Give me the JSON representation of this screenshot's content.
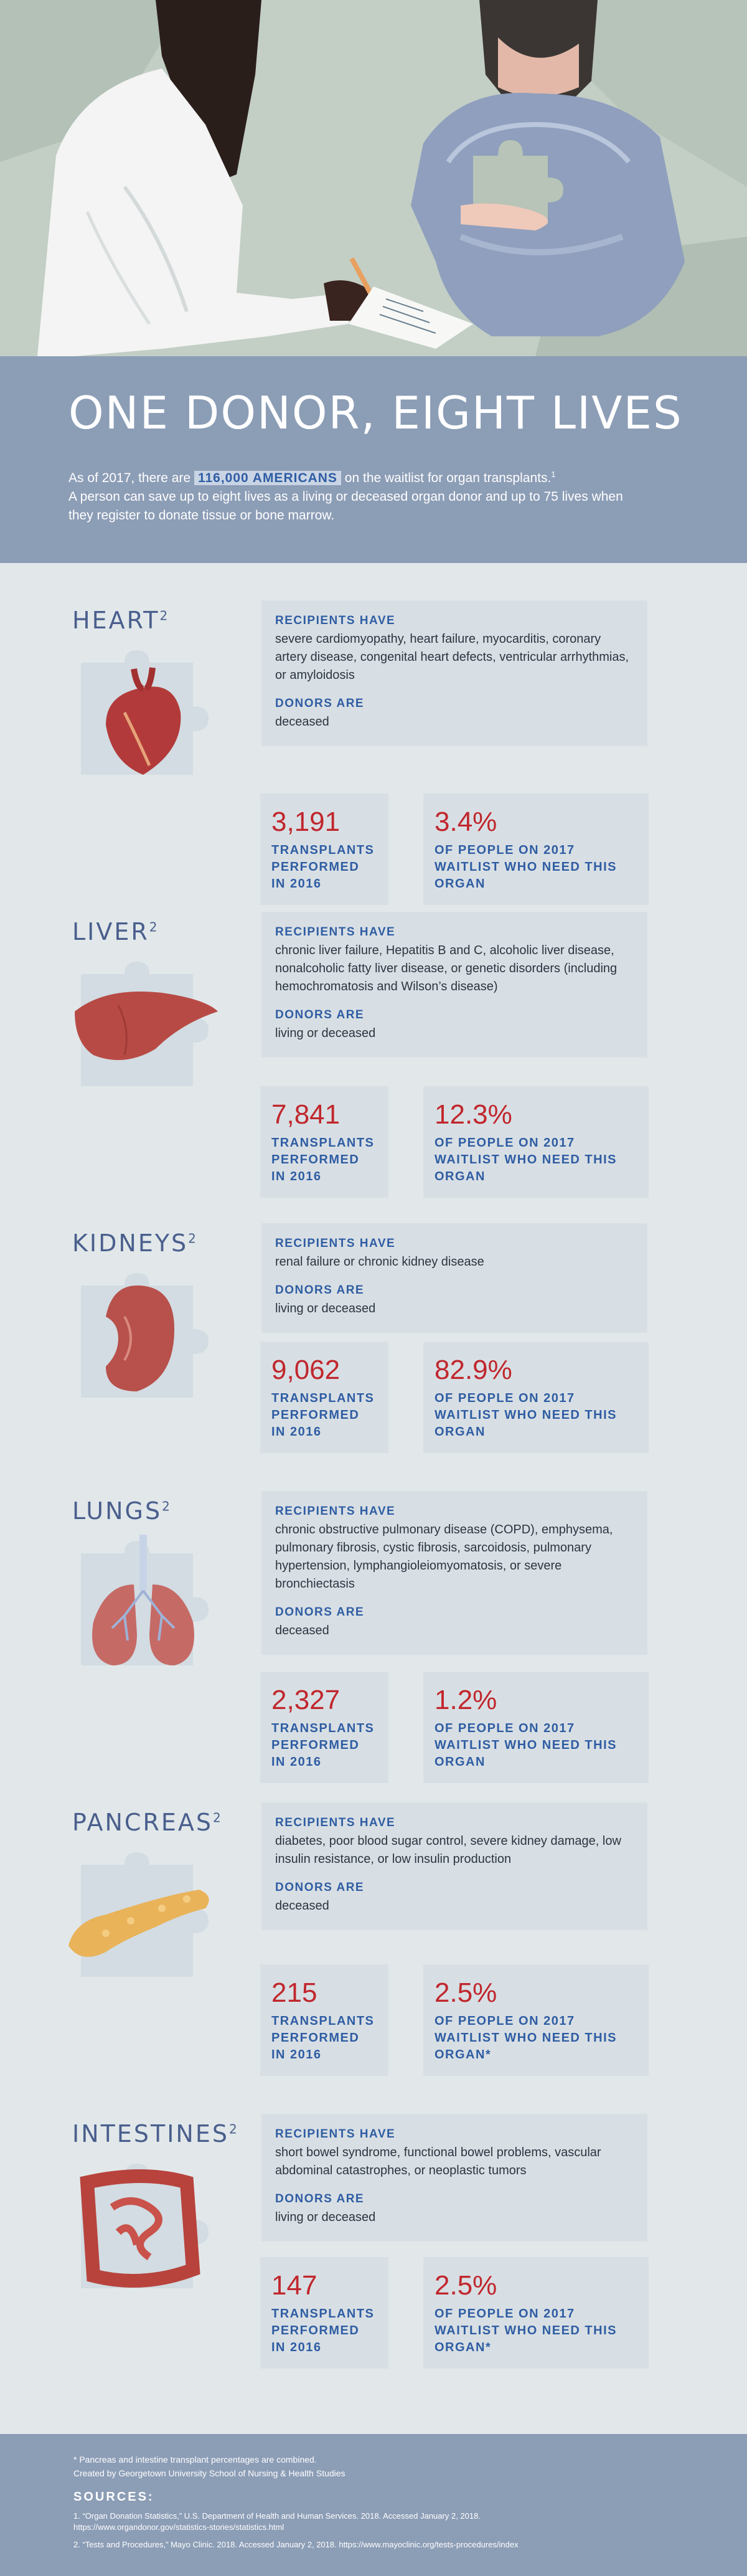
{
  "title": "ONE DONOR, EIGHT LIVES",
  "intro": {
    "before": "As of 2017, there are ",
    "highlight": "116,000 AMERICANS",
    "after": " on the waitlist for organ transplants.",
    "sup": "1",
    "line2": "A person can save up to eight lives as a living or deceased organ donor and up to 75 lives when they register to donate tissue or bone marrow."
  },
  "labels": {
    "recipients": "RECIPIENTS HAVE",
    "donors": "DONORS ARE",
    "transplants": "TRANSPLANTS PERFORMED IN 2016",
    "waitlist": "OF PEOPLE ON 2017 WAITLIST WHO NEED THIS ORGAN",
    "waitlist_star": "OF PEOPLE ON 2017 WAITLIST WHO NEED THIS ORGAN*"
  },
  "organs": [
    {
      "name": "HEART",
      "sup": "2",
      "recipients": "severe cardiomyopathy, heart failure, myocarditis, coronary artery disease, congenital heart defects, ventricular arrhythmias, or amyloidosis",
      "donors": "deceased",
      "transplants": "3,191",
      "percent": "3.4%"
    },
    {
      "name": "LIVER",
      "sup": "2",
      "recipients": "chronic liver failure, Hepatitis B and C, alcoholic liver disease, nonalcoholic fatty liver disease, or genetic disorders (including hemochromatosis and Wilson’s disease)",
      "donors": "living or deceased",
      "transplants": "7,841",
      "percent": "12.3%"
    },
    {
      "name": "KIDNEYS",
      "sup": "2",
      "recipients": "renal failure or chronic kidney disease",
      "donors": "living or deceased",
      "transplants": "9,062",
      "percent": "82.9%"
    },
    {
      "name": "LUNGS",
      "sup": "2",
      "recipients": "chronic obstructive pulmonary disease (COPD), emphysema, pulmonary fibrosis, cystic fibrosis, sarcoidosis, pulmonary hypertension, lymphangioleiomyomatosis, or severe bronchiectasis",
      "donors": "deceased",
      "transplants": "2,327",
      "percent": "1.2%"
    },
    {
      "name": "PANCREAS",
      "sup": "2",
      "recipients": "diabetes, poor blood sugar control, severe kidney damage, low insulin resistance, or low insulin production",
      "donors": "deceased",
      "transplants": "215",
      "percent": "2.5%"
    },
    {
      "name": "INTESTINES",
      "sup": "2",
      "recipients": "short bowel syndrome, functional bowel problems, vascular abdominal catastrophes, or neoplastic tumors",
      "donors": "living or deceased",
      "transplants": "147",
      "percent": "2.5%"
    }
  ],
  "footer": {
    "note": "* Pancreas and intestine transplant percentages are combined.",
    "credit": "Created by Georgetown University School of Nursing & Health Studies",
    "sources_title": "SOURCES:",
    "source1": "1. “Organ Donation Statistics,” U.S. Department of Health and Human Services. 2018. Accessed January 2, 2018. https://www.organdonor.gov/statistics-stories/statistics.html",
    "source2": "2. “Tests and Procedures,” Mayo Clinic. 2018. Accessed January 2, 2018. https://www.mayoclinic.org/tests-procedures/index"
  },
  "colors": {
    "accent_blue": "#2f5da3",
    "accent_red": "#c0272d",
    "band": "#8c9db6",
    "panel": "#d8dfe4"
  }
}
